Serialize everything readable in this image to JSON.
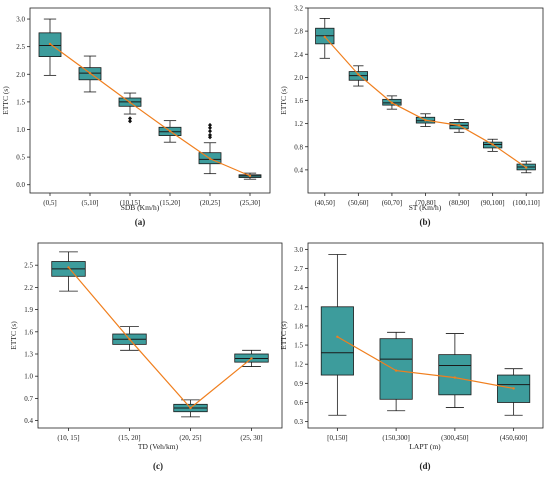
{
  "colors": {
    "box_fill": "#3d9c9c",
    "box_stroke": "#1a1a1a",
    "trend_line": "#f07f1e",
    "outlier": "#111111"
  },
  "chart_data": [
    {
      "type": "boxplot",
      "panel_label": "(a)",
      "xlabel": "SDB (Km/h)",
      "ylabel": "ETTC (s)",
      "categories": [
        "(0,5]",
        "(5,10]",
        "(10,15]",
        "(15,20]",
        "(20,25]",
        "(25,30]"
      ],
      "ylim": [
        -0.15,
        3.2
      ],
      "yticks": [
        0.0,
        0.5,
        1.0,
        1.5,
        2.0,
        2.5,
        3.0
      ],
      "ytick_labels": [
        "0.0",
        "0.5",
        "1.0",
        "1.5",
        "2.0",
        "2.5",
        "3.0"
      ],
      "boxes": [
        {
          "min": 1.98,
          "q1": 2.32,
          "median": 2.52,
          "q3": 2.75,
          "max": 3.0,
          "outliers": []
        },
        {
          "min": 1.68,
          "q1": 1.9,
          "median": 2.02,
          "q3": 2.12,
          "max": 2.33,
          "outliers": []
        },
        {
          "min": 1.28,
          "q1": 1.42,
          "median": 1.5,
          "q3": 1.57,
          "max": 1.66,
          "outliers": [
            1.15,
            1.2
          ]
        },
        {
          "min": 0.77,
          "q1": 0.89,
          "median": 0.96,
          "q3": 1.04,
          "max": 1.16,
          "outliers": []
        },
        {
          "min": 0.2,
          "q1": 0.38,
          "median": 0.46,
          "q3": 0.58,
          "max": 0.76,
          "outliers": [
            0.86,
            0.9,
            0.97,
            1.03,
            1.08
          ]
        },
        {
          "min": 0.1,
          "q1": 0.13,
          "median": 0.16,
          "q3": 0.18,
          "max": 0.21,
          "outliers": []
        }
      ],
      "trend": [
        2.55,
        2.02,
        1.49,
        0.97,
        0.47,
        0.16
      ]
    },
    {
      "type": "boxplot",
      "panel_label": "(b)",
      "xlabel": "ST (Km/h)",
      "ylabel": "ETTC (s)",
      "categories": [
        "(40,50]",
        "(50,60]",
        "(60,70]",
        "(70,80]",
        "(80,90]",
        "(90,100]",
        "(100,110]"
      ],
      "ylim": [
        0.0,
        3.2
      ],
      "yticks": [
        0.4,
        0.8,
        1.2,
        1.6,
        2.0,
        2.4,
        2.8,
        3.2
      ],
      "ytick_labels": [
        "0.4",
        "0.8",
        "1.2",
        "1.6",
        "2.0",
        "2.4",
        "2.8",
        "3.2"
      ],
      "boxes": [
        {
          "min": 2.33,
          "q1": 2.58,
          "median": 2.72,
          "q3": 2.85,
          "max": 3.02,
          "outliers": []
        },
        {
          "min": 1.85,
          "q1": 1.95,
          "median": 2.03,
          "q3": 2.1,
          "max": 2.2,
          "outliers": []
        },
        {
          "min": 1.45,
          "q1": 1.52,
          "median": 1.56,
          "q3": 1.62,
          "max": 1.68,
          "outliers": []
        },
        {
          "min": 1.15,
          "q1": 1.21,
          "median": 1.25,
          "q3": 1.31,
          "max": 1.37,
          "outliers": []
        },
        {
          "min": 1.05,
          "q1": 1.11,
          "median": 1.17,
          "q3": 1.22,
          "max": 1.27,
          "outliers": []
        },
        {
          "min": 0.72,
          "q1": 0.78,
          "median": 0.84,
          "q3": 0.88,
          "max": 0.93,
          "outliers": []
        },
        {
          "min": 0.35,
          "q1": 0.4,
          "median": 0.45,
          "q3": 0.5,
          "max": 0.55,
          "outliers": []
        }
      ],
      "trend": [
        2.7,
        2.05,
        1.56,
        1.26,
        1.17,
        0.84,
        0.44
      ]
    },
    {
      "type": "boxplot",
      "panel_label": "(c)",
      "xlabel": "TD (Veh/km)",
      "ylabel": "ETTC (s)",
      "categories": [
        "(10, 15]",
        "(15, 20]",
        "(20, 25]",
        "(25, 30]"
      ],
      "ylim": [
        0.3,
        2.8
      ],
      "yticks": [
        0.4,
        0.7,
        1.0,
        1.3,
        1.6,
        1.9,
        2.2,
        2.5
      ],
      "ytick_labels": [
        "0.4",
        "0.7",
        "1.0",
        "1.3",
        "1.6",
        "1.9",
        "2.2",
        "2.5"
      ],
      "boxes": [
        {
          "min": 2.15,
          "q1": 2.35,
          "median": 2.45,
          "q3": 2.55,
          "max": 2.68,
          "outliers": []
        },
        {
          "min": 1.35,
          "q1": 1.43,
          "median": 1.5,
          "q3": 1.57,
          "max": 1.67,
          "outliers": []
        },
        {
          "min": 0.45,
          "q1": 0.52,
          "median": 0.57,
          "q3": 0.62,
          "max": 0.68,
          "outliers": []
        },
        {
          "min": 1.13,
          "q1": 1.19,
          "median": 1.24,
          "q3": 1.3,
          "max": 1.35,
          "outliers": []
        }
      ],
      "trend": [
        2.47,
        1.5,
        0.57,
        1.24
      ]
    },
    {
      "type": "boxplot",
      "panel_label": "(d)",
      "xlabel": "LAPT (m)",
      "ylabel": "ETTC (s)",
      "categories": [
        "[0,150]",
        "(150,300]",
        "(300,450]",
        "(450,600]"
      ],
      "ylim": [
        0.2,
        3.1
      ],
      "yticks": [
        0.3,
        0.6,
        0.9,
        1.2,
        1.5,
        1.8,
        2.1,
        2.4,
        2.7,
        3.0
      ],
      "ytick_labels": [
        "0.3",
        "0.6",
        "0.9",
        "1.2",
        "1.5",
        "1.8",
        "2.1",
        "2.4",
        "2.7",
        "3.0"
      ],
      "boxes": [
        {
          "min": 0.4,
          "q1": 1.03,
          "median": 1.38,
          "q3": 2.1,
          "max": 2.92,
          "outliers": []
        },
        {
          "min": 0.47,
          "q1": 0.65,
          "median": 1.28,
          "q3": 1.6,
          "max": 1.7,
          "outliers": []
        },
        {
          "min": 0.52,
          "q1": 0.72,
          "median": 1.18,
          "q3": 1.35,
          "max": 1.68,
          "outliers": []
        },
        {
          "min": 0.4,
          "q1": 0.6,
          "median": 0.88,
          "q3": 1.03,
          "max": 1.13,
          "outliers": []
        }
      ],
      "trend": [
        1.63,
        1.1,
        0.99,
        0.82
      ]
    }
  ]
}
